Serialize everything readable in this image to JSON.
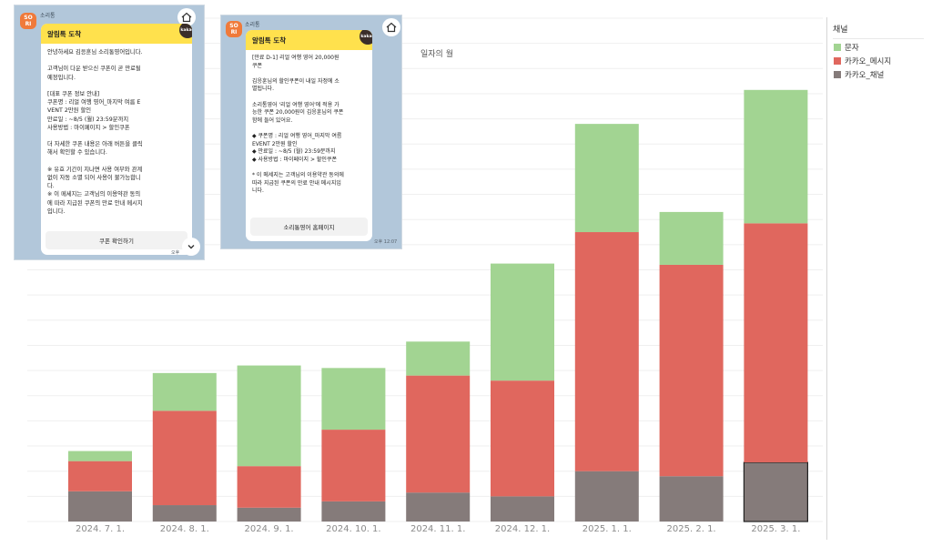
{
  "chart_data": {
    "type": "bar",
    "stacked": true,
    "title": "일자의 월",
    "categories": [
      "2024. 7. 1.",
      "2024. 8. 1.",
      "2024. 9. 1.",
      "2024. 10. 1.",
      "2024. 11. 1.",
      "2024. 12. 1.",
      "2025. 1. 1.",
      "2025. 2. 1.",
      "2025. 3. 1."
    ],
    "series": [
      {
        "name": "카카오_채널",
        "color": "#857b7a",
        "values": [
          24,
          13,
          11,
          16,
          23,
          20,
          40,
          36,
          47
        ]
      },
      {
        "name": "카카오_메시지",
        "color": "#e0675e",
        "values": [
          24,
          75,
          33,
          57,
          93,
          92,
          190,
          168,
          190
        ]
      },
      {
        "name": "문자",
        "color": "#a2d492",
        "values": [
          8,
          30,
          80,
          49,
          27,
          93,
          86,
          42,
          106
        ]
      }
    ],
    "ylim": [
      0,
      400
    ],
    "grid": true,
    "highlighted_category": "2025. 3. 1."
  },
  "legend": {
    "title": "채널",
    "items": [
      {
        "label": "문자",
        "color": "#a2d492"
      },
      {
        "label": "카카오_메시지",
        "color": "#e0675e"
      },
      {
        "label": "카카오_채널",
        "color": "#857b7a"
      }
    ]
  },
  "chat1": {
    "sender": "소리통",
    "avatar_text": "SO\nRI",
    "header": "알림톡 도착",
    "badge": "kakao",
    "body": "안녕하세요 김응훈님 소리통영어입니다.\n\n고객님이 다운 받으신 쿠폰이 곧 만료될\n예정입니다.\n\n[대표 쿠폰 정보 안내]\n쿠폰명 : 리얼 여행 영어_마지막 여름 E\nVENT 2만원 할인\n만료일 : ~8/5 (월) 23:59분까지\n사용방법 : 마이페이지 > 할인쿠폰\n\n더 자세한 쿠폰 내용은 아래 버튼을 클릭\n해서 확인할 수 있습니다.\n\n※ 유효 기간이 지나면 사용 여부와 관계\n없이 자동 소멸 되어 사용이 불가능합니\n다.\n※ 이 메세지는 고객님의 이용약관 동의\n에 따라 지급된 쿠폰의 만료 안내 메시지\n입니다.",
    "button": "쿠폰 확인하기",
    "time": "오후"
  },
  "chat2": {
    "sender": "소리통",
    "avatar_text": "SO\nRI",
    "header": "알림톡 도착",
    "badge": "kakao",
    "body": "[만료 D-1] 리얼 여행 영어 20,000원\n쿠폰\n\n김응훈님의  할인쿠폰이 내일 자정에 소\n멸됩니다.\n\n소리통영어 '리얼 여행 영어'에 적용 가\n능한 쿠폰 20,000원이 김응훈님의 쿠폰\n함에 들어 있어요.\n\n◆ 쿠폰명 : 리얼 여행 영어_마지막 여름\nEVENT 2만원 할인\n◆ 만료일 : ~8/5 (월) 23:59분까지\n◆ 사용방법 : 마이페이지 > 할인쿠폰\n\n* 이 메세지는 고객님의 이용약관 동의에\n따라 지급된 쿠폰의 만료 안내 메시지입\n니다.",
    "button": "소리통영어 홈페이지",
    "time": "오후 12:07"
  }
}
